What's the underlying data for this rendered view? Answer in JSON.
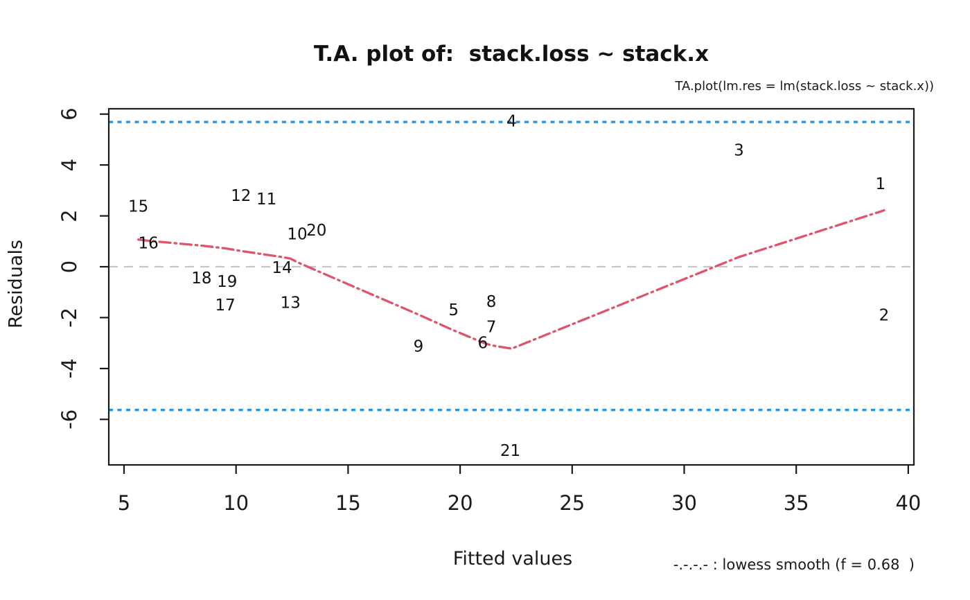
{
  "title": "T.A. plot of:  stack.loss ~ stack.x",
  "subtitle": "TA.plot(lm.res = lm(stack.loss ~ stack.x))",
  "chart_data": {
    "type": "scatter",
    "title": "T.A. plot of:  stack.loss ~ stack.x",
    "subtitle": "TA.plot(lm.res = lm(stack.loss ~ stack.x))",
    "xlabel": "Fitted values",
    "ylabel": "Residuals",
    "legend_label": "-.-.-.- : lowess smooth (f = 0.68  )",
    "xlim": [
      4.32,
      40.25
    ],
    "ylim": [
      -7.79,
      6.21
    ],
    "x_ticks": [
      5,
      10,
      15,
      20,
      25,
      30,
      35,
      40
    ],
    "y_ticks": [
      -6,
      -4,
      -2,
      0,
      2,
      4,
      6
    ],
    "grid": false,
    "colors": {
      "lowess": "#DF536B",
      "sigma_band": "#2297E6",
      "zero_line": "#C6C6C6",
      "axis": "#1A1A1A"
    },
    "zero_line_y": 0,
    "sigma_lines_y": [
      5.69,
      -5.63
    ],
    "points": [
      {
        "label": "1",
        "x": 38.76,
        "y": 3.24
      },
      {
        "label": "2",
        "x": 38.92,
        "y": -1.92
      },
      {
        "label": "3",
        "x": 32.44,
        "y": 4.56
      },
      {
        "label": "4",
        "x": 22.3,
        "y": 5.7
      },
      {
        "label": "5",
        "x": 19.71,
        "y": -1.71
      },
      {
        "label": "6",
        "x": 21.01,
        "y": -3.01
      },
      {
        "label": "7",
        "x": 21.39,
        "y": -2.39
      },
      {
        "label": "8",
        "x": 21.39,
        "y": -1.39
      },
      {
        "label": "9",
        "x": 18.14,
        "y": -3.14
      },
      {
        "label": "10",
        "x": 12.73,
        "y": 1.27
      },
      {
        "label": "11",
        "x": 11.36,
        "y": 2.64
      },
      {
        "label": "12",
        "x": 10.22,
        "y": 2.78
      },
      {
        "label": "13",
        "x": 12.43,
        "y": -1.43
      },
      {
        "label": "14",
        "x": 12.05,
        "y": -0.05
      },
      {
        "label": "15",
        "x": 5.64,
        "y": 2.36
      },
      {
        "label": "16",
        "x": 6.09,
        "y": 0.91
      },
      {
        "label": "17",
        "x": 9.52,
        "y": -1.52
      },
      {
        "label": "18",
        "x": 8.46,
        "y": -0.46
      },
      {
        "label": "19",
        "x": 9.6,
        "y": -0.6
      },
      {
        "label": "20",
        "x": 13.59,
        "y": 1.41
      },
      {
        "label": "21",
        "x": 22.24,
        "y": -7.24
      }
    ],
    "lowess": {
      "f": 0.68,
      "points": [
        [
          5.64,
          1.07
        ],
        [
          6.09,
          1.02
        ],
        [
          8.46,
          0.83
        ],
        [
          9.56,
          0.72
        ],
        [
          10.22,
          0.62
        ],
        [
          11.36,
          0.47
        ],
        [
          12.05,
          0.38
        ],
        [
          12.43,
          0.32
        ],
        [
          12.73,
          0.18
        ],
        [
          13.59,
          -0.15
        ],
        [
          18.14,
          -1.88
        ],
        [
          19.71,
          -2.5
        ],
        [
          21.01,
          -2.98
        ],
        [
          21.39,
          -3.09
        ],
        [
          22.3,
          -3.22
        ],
        [
          32.44,
          0.38
        ],
        [
          38.76,
          2.17
        ],
        [
          38.92,
          2.22
        ]
      ]
    }
  }
}
